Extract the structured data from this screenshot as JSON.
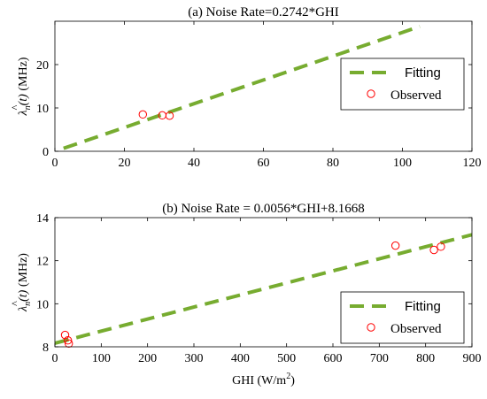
{
  "colors": {
    "fit": "#77ac30",
    "observed": "#ff0000",
    "axis": "#000000"
  },
  "chart_data": [
    {
      "id": "a",
      "type": "scatter",
      "title": "(a) Noise Rate=0.2742*GHI",
      "xlabel": "",
      "ylabel_parts": {
        "sym": "λ",
        "sub": "n",
        "arg": "(t)",
        "unit": "(MHz)"
      },
      "xlim": [
        0,
        120
      ],
      "ylim": [
        0,
        30
      ],
      "xticks": [
        0,
        20,
        40,
        60,
        80,
        100,
        120
      ],
      "yticks": [
        0,
        10,
        20
      ],
      "grid": false,
      "legend_position": "right",
      "series": [
        {
          "name": "Fitting",
          "kind": "line",
          "style": "dashed",
          "slope": 0.2742,
          "intercept": 0,
          "x_range": [
            2.5,
            105
          ]
        },
        {
          "name": "Observed",
          "kind": "marker",
          "marker": "circle",
          "points": [
            [
              25.3,
              8.5
            ],
            [
              30.9,
              8.3
            ],
            [
              33.0,
              8.2
            ]
          ]
        }
      ]
    },
    {
      "id": "b",
      "type": "scatter",
      "title": "(b) Noise Rate = 0.0056*GHI+8.1668",
      "xlabel_parts": {
        "text": "GHI (W/m",
        "sup": "2",
        "close": ")"
      },
      "ylabel_parts": {
        "sym": "λ",
        "sub": "n",
        "arg": "(t)",
        "unit": "(MHz)"
      },
      "xlim": [
        0,
        900
      ],
      "ylim": [
        8,
        14
      ],
      "xticks": [
        0,
        100,
        200,
        300,
        400,
        500,
        600,
        700,
        800,
        900
      ],
      "yticks": [
        8,
        10,
        12,
        14
      ],
      "grid": false,
      "legend_position": "right",
      "series": [
        {
          "name": "Fitting",
          "kind": "line",
          "style": "dashed",
          "slope": 0.0056,
          "intercept": 8.1668,
          "x_range": [
            0,
            900
          ]
        },
        {
          "name": "Observed",
          "kind": "marker",
          "marker": "circle",
          "points": [
            [
              22,
              8.55
            ],
            [
              28,
              8.3
            ],
            [
              30,
              8.15
            ],
            [
              735,
              12.7
            ],
            [
              818,
              12.5
            ],
            [
              833,
              12.65
            ]
          ]
        }
      ]
    }
  ]
}
